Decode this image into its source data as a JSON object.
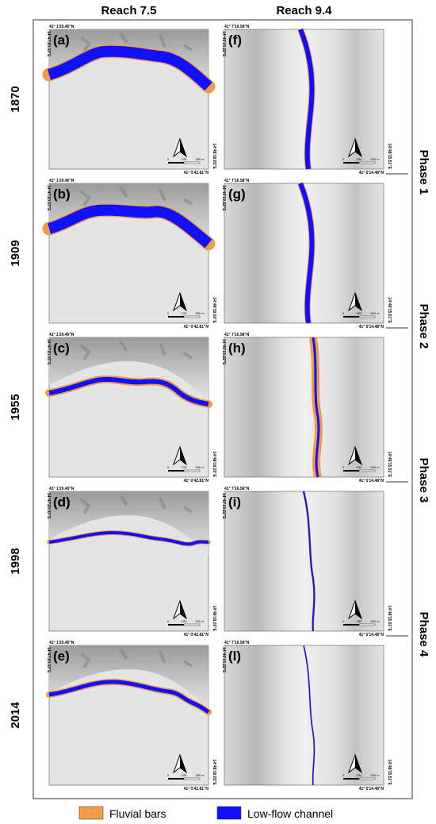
{
  "columns": [
    {
      "title": "Reach 7.5",
      "coords": {
        "top": "41° 1'20.40\"N",
        "left": "14°47'20.03\"E",
        "right": "14°48'19.03\"E",
        "bottom": "41° 0'42.81\"N"
      },
      "scale": [
        "0",
        "125",
        "250 m"
      ]
    },
    {
      "title": "Reach 9.4",
      "coords": {
        "top": "41° 7'16.58\"N",
        "left": "14°45'19.22\"E",
        "right": "14°48'15.51\"E",
        "bottom": "41° 5'14.48\"N"
      },
      "scale": [
        "0",
        "250",
        "500 m"
      ]
    }
  ],
  "rows": [
    {
      "year": "1870",
      "panels": [
        "(a)",
        "(f)"
      ]
    },
    {
      "year": "1909",
      "panels": [
        "(b)",
        "(g)"
      ]
    },
    {
      "year": "1955",
      "panels": [
        "(c)",
        "(h)"
      ]
    },
    {
      "year": "1998",
      "panels": [
        "(d)",
        "(i)"
      ]
    },
    {
      "year": "2014",
      "panels": [
        "(e)",
        "(l)"
      ]
    }
  ],
  "phases": [
    "Phase 1",
    "Phase 2",
    "Phase 3",
    "Phase 4"
  ],
  "legend": [
    "Fluvial bars",
    "Low-flow channel"
  ]
}
